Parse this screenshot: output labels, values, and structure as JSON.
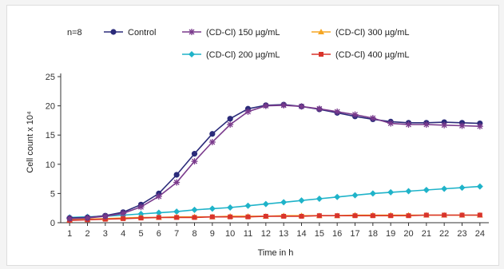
{
  "chart_data": {
    "type": "line",
    "annotation": "n=8",
    "xlabel": "Time in h",
    "ylabel": "Cell count x 10⁴",
    "xlim": [
      0.5,
      24.5
    ],
    "ylim": [
      0,
      25
    ],
    "xticks": [
      1,
      2,
      3,
      4,
      5,
      6,
      7,
      8,
      9,
      10,
      11,
      12,
      13,
      14,
      15,
      16,
      17,
      18,
      19,
      20,
      21,
      22,
      23,
      24
    ],
    "yticks": [
      0,
      5,
      10,
      15,
      20,
      25
    ],
    "grid": false,
    "legend_position": "top",
    "x": [
      1,
      2,
      3,
      4,
      5,
      6,
      7,
      8,
      9,
      10,
      11,
      12,
      13,
      14,
      15,
      16,
      17,
      18,
      19,
      20,
      21,
      22,
      23,
      24
    ],
    "series": [
      {
        "name": "Control",
        "color": "#2b2b7a",
        "marker": "circle",
        "values": [
          0.8,
          0.9,
          1.2,
          1.8,
          3.1,
          5.0,
          8.2,
          11.8,
          15.2,
          17.8,
          19.5,
          20.1,
          20.2,
          19.9,
          19.4,
          18.8,
          18.2,
          17.7,
          17.3,
          17.1,
          17.1,
          17.2,
          17.1,
          17.0
        ]
      },
      {
        "name": "(CD-Cl) 150 µg/mL",
        "color": "#7a3a8c",
        "marker": "star",
        "values": [
          0.7,
          0.8,
          1.1,
          1.6,
          2.7,
          4.5,
          6.9,
          10.5,
          13.8,
          16.8,
          19.0,
          20.0,
          20.1,
          19.9,
          19.5,
          19.0,
          18.5,
          17.9,
          17.0,
          16.8,
          16.8,
          16.7,
          16.6,
          16.5
        ]
      },
      {
        "name": "(CD-Cl) 300 µg/mL",
        "color": "#f5a623",
        "marker": "triangle",
        "values": [
          0.5,
          0.6,
          0.7,
          0.8,
          0.9,
          0.9,
          1.0,
          1.0,
          1.0,
          1.1,
          1.1,
          1.1,
          1.2,
          1.2,
          1.2,
          1.2,
          1.3,
          1.3,
          1.3,
          1.3,
          1.3,
          1.3,
          1.3,
          1.3
        ]
      },
      {
        "name": "(CD-Cl) 200 µg/mL",
        "color": "#1fb3c9",
        "marker": "diamond",
        "values": [
          0.9,
          1.0,
          1.1,
          1.3,
          1.5,
          1.7,
          1.9,
          2.2,
          2.4,
          2.6,
          2.9,
          3.2,
          3.5,
          3.8,
          4.1,
          4.4,
          4.7,
          5.0,
          5.2,
          5.4,
          5.6,
          5.8,
          6.0,
          6.2
        ]
      },
      {
        "name": "(CD-Cl) 400 µg/mL",
        "color": "#d9342b",
        "marker": "square",
        "values": [
          0.4,
          0.5,
          0.6,
          0.7,
          0.8,
          0.9,
          0.9,
          0.9,
          1.0,
          1.0,
          1.0,
          1.1,
          1.1,
          1.1,
          1.2,
          1.2,
          1.2,
          1.2,
          1.2,
          1.2,
          1.3,
          1.3,
          1.3,
          1.3
        ]
      }
    ],
    "legend_order": [
      0,
      1,
      2,
      3,
      4
    ]
  }
}
